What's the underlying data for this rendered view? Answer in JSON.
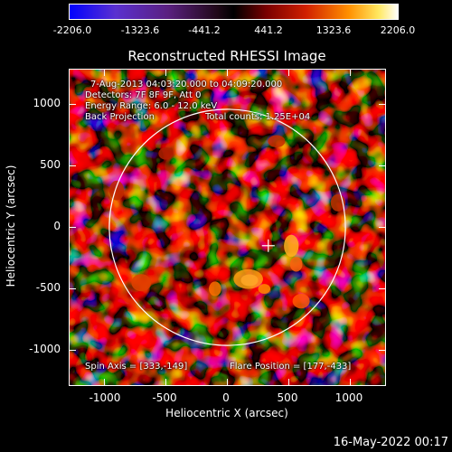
{
  "colorbar": {
    "tick_labels": [
      "-2206.0",
      "-1323.6",
      "-441.2",
      "441.2",
      "1323.6",
      "2206.0"
    ],
    "colors": [
      "#0000ff",
      "#6a34c0",
      "#4a1a5a",
      "#000000",
      "#6a0000",
      "#cc1e00",
      "#ff8c00",
      "#ffe040",
      "#ffffff"
    ]
  },
  "chart_data": {
    "type": "heatmap",
    "title": "Reconstructed RHESSI Image",
    "xlabel": "Heliocentric X (arcsec)",
    "ylabel": "Heliocentric Y (arcsec)",
    "xlim": [
      -1290,
      1290
    ],
    "ylim": [
      -1290,
      1290
    ],
    "x_ticks": [
      "-1000",
      "-500",
      "0",
      "500",
      "1000"
    ],
    "y_ticks": [
      "1000",
      "500",
      "0",
      "-500",
      "-1000"
    ],
    "x_tick_values": [
      -1000,
      -500,
      0,
      500,
      1000
    ],
    "y_tick_values": [
      1000,
      500,
      0,
      -500,
      -1000
    ],
    "solar_limb_radius": 960,
    "flare_marker": [
      333,
      -149
    ],
    "value_range": [
      -2206.0,
      2206.0
    ]
  },
  "info": {
    "time_range": "7-Aug-2013 04:03:20.000 to 04:09:20.000",
    "detectors": "Detectors: 7F 8F 9F, Att 0",
    "energy": "Energy Range: 6.0 - 12.0 keV",
    "method": "Back Projection",
    "counts": "Total counts: 1.25E+04",
    "spin_axis": "Spin Axis = [333,-149]",
    "flare_position": "Flare Position = [177,-433]"
  },
  "timestamp": "16-May-2022 00:17"
}
